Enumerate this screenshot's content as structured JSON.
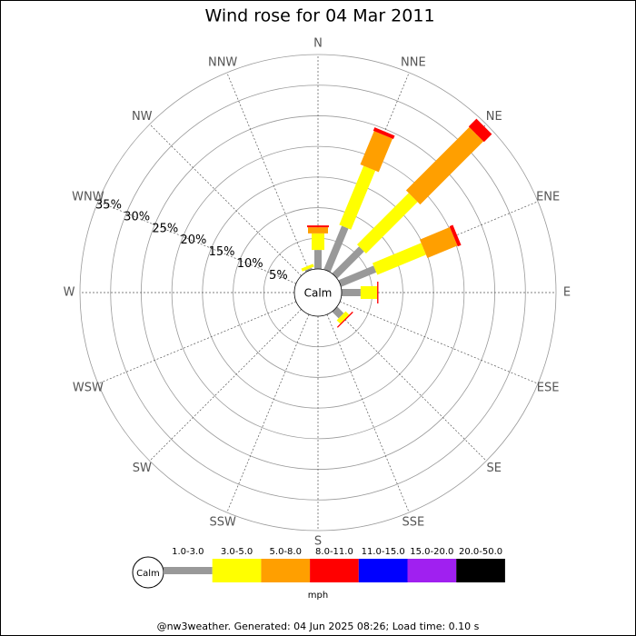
{
  "chart_data": {
    "type": "windrose",
    "title": "Wind rose for 04 Mar 2011",
    "calm_label": "Calm",
    "unit": "mph",
    "footer": "@nw3weather. Generated: 04 Jun 2025 08:26; Load time: 0.10 s",
    "categories": [
      "N",
      "NNE",
      "NE",
      "ENE",
      "E",
      "ESE",
      "SE",
      "SSE",
      "S",
      "SSW",
      "SW",
      "WSW",
      "W",
      "WNW",
      "NW",
      "NNW"
    ],
    "ylim": [
      0,
      35
    ],
    "yticks": [
      {
        "value": 5,
        "label": "5%"
      },
      {
        "value": 10,
        "label": "10%"
      },
      {
        "value": 15,
        "label": "15%"
      },
      {
        "value": 20,
        "label": "20%"
      },
      {
        "value": 25,
        "label": "25%"
      },
      {
        "value": 30,
        "label": "30%"
      },
      {
        "value": 35,
        "label": "35%"
      }
    ],
    "series": [
      {
        "name": "1.0-3.0",
        "color": "#999999",
        "values": [
          3.1,
          7.7,
          6.2,
          6.2,
          3.1,
          0,
          1.5,
          0,
          0,
          0,
          0,
          0,
          0,
          0,
          0,
          0.3
        ]
      },
      {
        "name": "3.0-5.0",
        "color": "#ffff00",
        "values": [
          2.7,
          10.4,
          11.9,
          8.6,
          2.7,
          0,
          0.8,
          0,
          0,
          0,
          0,
          0,
          0,
          0,
          0,
          0.5
        ]
      },
      {
        "name": "5.0-8.0",
        "color": "#ff9f00",
        "values": [
          1.0,
          5.9,
          14.6,
          5.3,
          0,
          0,
          0,
          0,
          0,
          0,
          0,
          0,
          0,
          0,
          0,
          0
        ]
      },
      {
        "name": "8.0-11.0",
        "color": "#ff0000",
        "values": [
          0.3,
          0.6,
          1.8,
          0.6,
          0.2,
          0,
          0.2,
          0,
          0,
          0,
          0,
          0,
          0,
          0,
          0,
          0
        ]
      },
      {
        "name": "11.0-15.0",
        "color": "#0000ff",
        "values": [
          0,
          0,
          0,
          0,
          0,
          0,
          0,
          0,
          0,
          0,
          0,
          0,
          0,
          0,
          0,
          0
        ]
      },
      {
        "name": "15.0-20.0",
        "color": "#a020f0",
        "values": [
          0,
          0,
          0,
          0,
          0,
          0,
          0,
          0,
          0,
          0,
          0,
          0,
          0,
          0,
          0,
          0
        ]
      },
      {
        "name": "20.0-50.0",
        "color": "#000000",
        "values": [
          0,
          0,
          0,
          0,
          0,
          0,
          0,
          0,
          0,
          0,
          0,
          0,
          0,
          0,
          0,
          0
        ]
      }
    ]
  }
}
